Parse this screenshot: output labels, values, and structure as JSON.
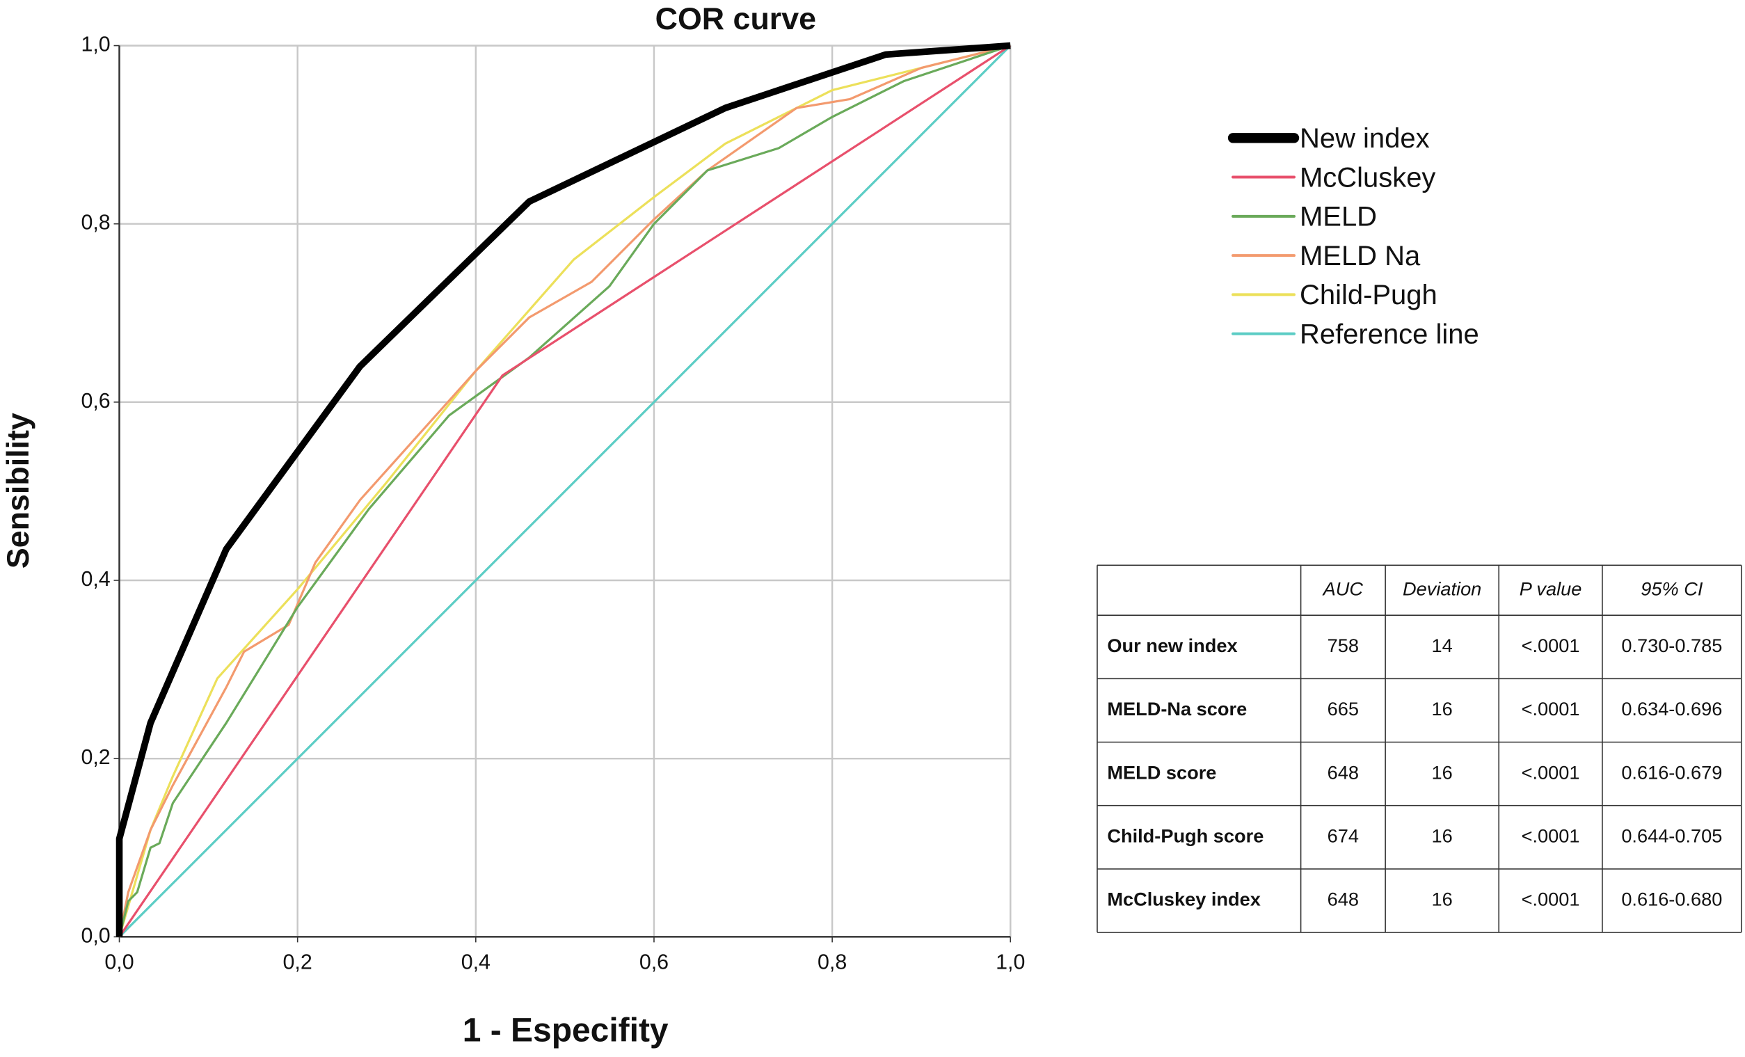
{
  "chart_data": {
    "type": "line",
    "title": "COR curve",
    "xlabel": "1 - Especifity",
    "ylabel": "Sensibility",
    "xlim": [
      0,
      1
    ],
    "ylim": [
      0,
      1
    ],
    "grid": true,
    "legend": "upper right",
    "xticks": [
      {
        "value": 0,
        "label": "0,0"
      },
      {
        "value": 0.2,
        "label": "0,2"
      },
      {
        "value": 0.4,
        "label": "0,4"
      },
      {
        "value": 0.6,
        "label": "0,6"
      },
      {
        "value": 0.8,
        "label": "0,8"
      },
      {
        "value": 1,
        "label": "1,0"
      }
    ],
    "yticks": [
      {
        "value": 0,
        "label": "0,0"
      },
      {
        "value": 0.2,
        "label": "0,2"
      },
      {
        "value": 0.4,
        "label": "0,4"
      },
      {
        "value": 0.6,
        "label": "0,6"
      },
      {
        "value": 0.8,
        "label": "0,8"
      },
      {
        "value": 1,
        "label": "1,0"
      }
    ],
    "series": [
      {
        "name": "New index",
        "color": "#000000",
        "x": [
          0,
          0,
          0.035,
          0.12,
          0.27,
          0.46,
          0.68,
          0.86,
          1
        ],
        "values": [
          0,
          0.11,
          0.24,
          0.435,
          0.64,
          0.825,
          0.93,
          0.99,
          1
        ]
      },
      {
        "name": "McCluskey",
        "color": "#e8506c",
        "x": [
          0,
          0.43,
          1
        ],
        "values": [
          0,
          0.63,
          1
        ]
      },
      {
        "name": "MELD",
        "color": "#6aaa5a",
        "x": [
          0,
          0.01,
          0.02,
          0.035,
          0.045,
          0.06,
          0.12,
          0.2,
          0.28,
          0.37,
          0.46,
          0.55,
          0.6,
          0.66,
          0.74,
          0.8,
          0.88,
          1
        ],
        "values": [
          0,
          0.04,
          0.05,
          0.1,
          0.105,
          0.15,
          0.24,
          0.37,
          0.48,
          0.585,
          0.65,
          0.73,
          0.8,
          0.86,
          0.885,
          0.92,
          0.96,
          1
        ]
      },
      {
        "name": "MELD Na",
        "color": "#f39a6e",
        "x": [
          0,
          0.01,
          0.035,
          0.06,
          0.12,
          0.14,
          0.19,
          0.22,
          0.27,
          0.4,
          0.46,
          0.53,
          0.6,
          0.66,
          0.76,
          0.82,
          0.9,
          1
        ],
        "values": [
          0,
          0.05,
          0.12,
          0.17,
          0.28,
          0.32,
          0.35,
          0.42,
          0.49,
          0.635,
          0.695,
          0.735,
          0.805,
          0.86,
          0.93,
          0.94,
          0.975,
          1
        ]
      },
      {
        "name": "Child-Pugh",
        "color": "#ece05a",
        "x": [
          0,
          0.035,
          0.06,
          0.11,
          0.2,
          0.3,
          0.4,
          0.51,
          0.6,
          0.68,
          0.8,
          1
        ],
        "values": [
          0,
          0.12,
          0.18,
          0.29,
          0.39,
          0.51,
          0.635,
          0.76,
          0.83,
          0.89,
          0.95,
          1
        ]
      },
      {
        "name": "Reference line",
        "color": "#5ccdc5",
        "x": [
          0,
          1
        ],
        "values": [
          0,
          1
        ]
      }
    ]
  },
  "table": {
    "header": [
      "AUC",
      "Deviation",
      "P value",
      "95% CI"
    ],
    "rows": [
      [
        "Our new index",
        758,
        14,
        "<.0001",
        "0.730-0.785"
      ],
      [
        "MELD-Na score",
        665,
        16,
        "<.0001",
        "0.634-0.696"
      ],
      [
        "MELD score",
        648,
        16,
        "<.0001",
        "0.616-0.679"
      ],
      [
        "Child-Pugh score",
        674,
        16,
        "<.0001",
        "0.644-0.705"
      ],
      [
        "McCluskey index",
        648,
        16,
        "<.0001",
        "0.616-0.680"
      ]
    ]
  }
}
